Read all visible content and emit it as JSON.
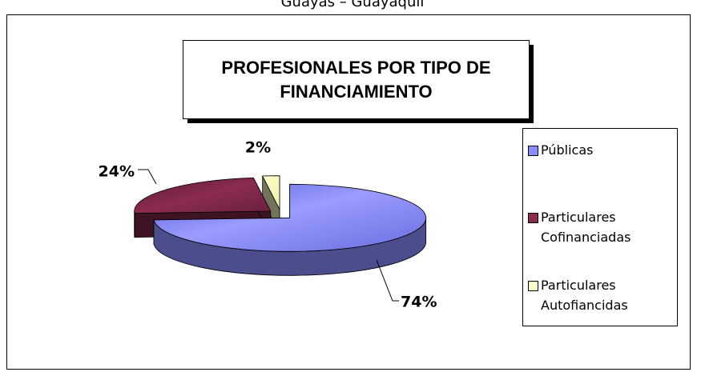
{
  "chart_data": {
    "type": "pie3d",
    "header": "Guayas – Guayaquil",
    "title": "PROFESIONALES POR TIPO DE FINANCIAMIENTO",
    "categories": [
      "Públicas",
      "Particulares Cofinanciadas",
      "Particulares Autofiancidas"
    ],
    "values": [
      74,
      24,
      2
    ],
    "value_labels": [
      "74%",
      "24%",
      "2%"
    ],
    "colors": [
      "#8a8cff",
      "#8a2c50",
      "#ffffcc"
    ],
    "legend": "right"
  }
}
